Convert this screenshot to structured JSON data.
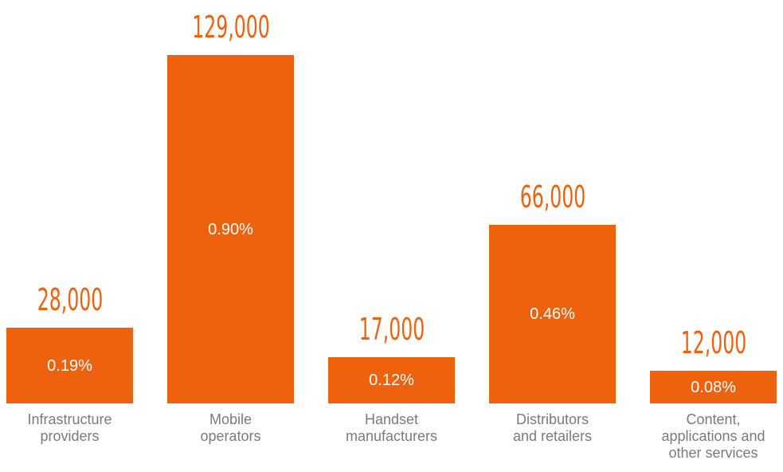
{
  "chart_data": {
    "type": "bar",
    "categories": [
      "Infrastructure\nproviders",
      "Mobile\noperators",
      "Handset\nmanufacturers",
      "Distributors\nand retailers",
      "Content,\napplications and\nother services"
    ],
    "values": [
      28000,
      129000,
      17000,
      66000,
      12000
    ],
    "value_labels": [
      "28,000",
      "129,000",
      "17,000",
      "66,000",
      "12,000"
    ],
    "share_values": [
      0.19,
      0.9,
      0.12,
      0.46,
      0.08
    ],
    "share_labels": [
      "0.19%",
      "0.90%",
      "0.12%",
      "0.46%",
      "0.08%"
    ],
    "color": "#ec620d"
  }
}
